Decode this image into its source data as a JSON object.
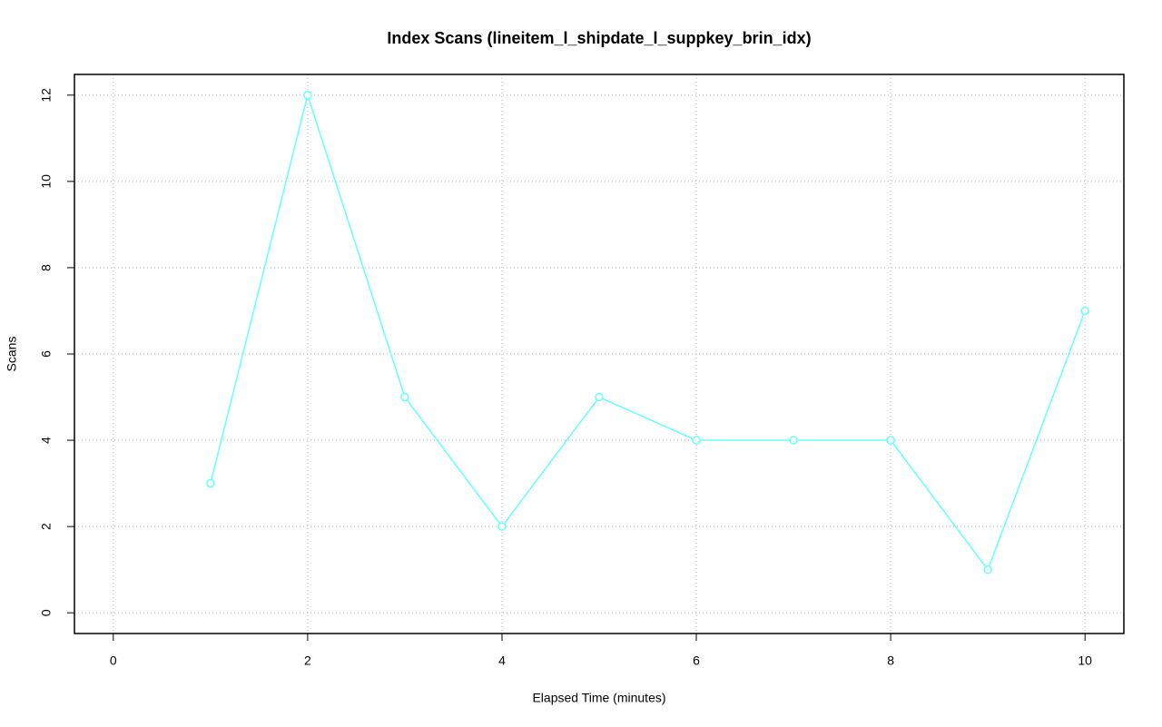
{
  "chart_data": {
    "type": "line",
    "title": "Index Scans (lineitem_l_shipdate_l_suppkey_brin_idx)",
    "x_label": "Elapsed Time (minutes)",
    "y_label": "Scans",
    "x": [
      1,
      2,
      3,
      4,
      5,
      6,
      7,
      8,
      9,
      10
    ],
    "values": [
      3,
      12,
      5,
      2,
      5,
      4,
      4,
      4,
      1,
      7
    ],
    "color": "#66ffff",
    "xlim": [
      -0.4,
      10.4
    ],
    "xticks": [
      0,
      2,
      4,
      6,
      8,
      10
    ],
    "ylim": [
      -0.48,
      12.48
    ],
    "yticks": [
      0,
      2,
      4,
      6,
      8,
      10,
      12
    ],
    "grid": true
  }
}
